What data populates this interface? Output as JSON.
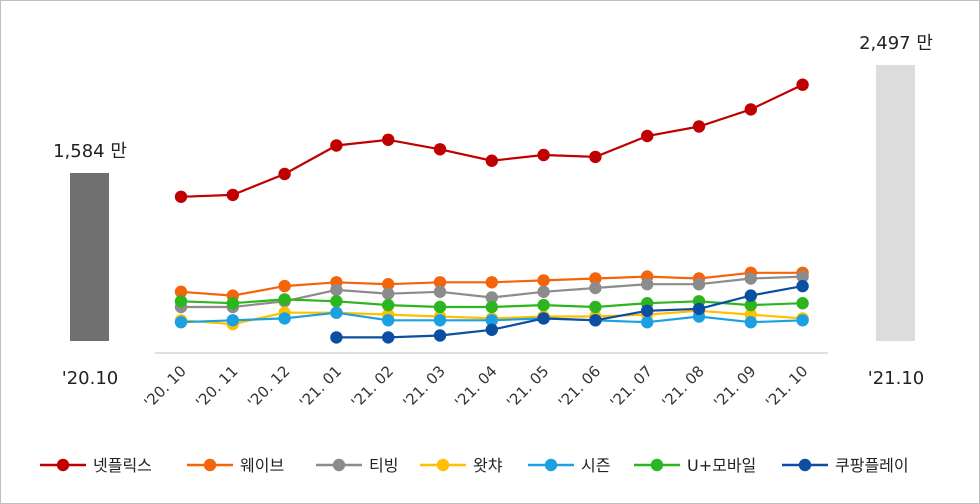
{
  "chart_data": {
    "type": "line",
    "categories": [
      "'20. 10",
      "'20. 11",
      "'20. 12",
      "'21. 01",
      "'21. 02",
      "'21. 03",
      "'21. 04",
      "'21. 05",
      "'21. 06",
      "'21. 07",
      "'21. 08",
      "'21. 09",
      "'21. 10"
    ],
    "series": [
      {
        "name": "넷플릭스",
        "color": "#c00000",
        "values": [
          78,
          79,
          90,
          105,
          108,
          103,
          97,
          100,
          99,
          110,
          115,
          124,
          137
        ]
      },
      {
        "name": "웨이브",
        "color": "#f4640a",
        "values": [
          28,
          26,
          31,
          33,
          32,
          33,
          33,
          34,
          35,
          36,
          35,
          38,
          38
        ]
      },
      {
        "name": "티빙",
        "color": "#8c8c8c",
        "values": [
          20,
          20,
          23,
          29,
          27,
          28,
          25,
          28,
          30,
          32,
          32,
          35,
          36
        ]
      },
      {
        "name": "왓챠",
        "color": "#ffc000",
        "values": [
          13,
          11,
          17,
          17,
          16,
          15,
          14,
          15,
          15,
          16,
          18,
          16,
          14
        ]
      },
      {
        "name": "시즌",
        "color": "#1ba1e2",
        "values": [
          12,
          13,
          14,
          17,
          13,
          13,
          13,
          14,
          13,
          12,
          15,
          12,
          13
        ]
      },
      {
        "name": "U+모바일",
        "color": "#2db51f",
        "values": [
          23,
          22,
          24,
          23,
          21,
          20,
          20,
          21,
          20,
          22,
          23,
          21,
          22
        ]
      },
      {
        "name": "쿠팡플레이",
        "color": "#0b4ea2",
        "values": [
          null,
          null,
          null,
          4,
          4,
          5,
          8,
          14,
          13,
          18,
          19,
          26,
          31
        ]
      }
    ],
    "left_bar": {
      "value_label": "1,584 만",
      "period": "'20.10",
      "color": "#707070"
    },
    "right_bar": {
      "value_label": "2,497 만",
      "period": "'21.10",
      "color": "#dcdcdc"
    },
    "ylim": [
      0,
      150
    ],
    "grid": false,
    "legend_position": "bottom"
  }
}
